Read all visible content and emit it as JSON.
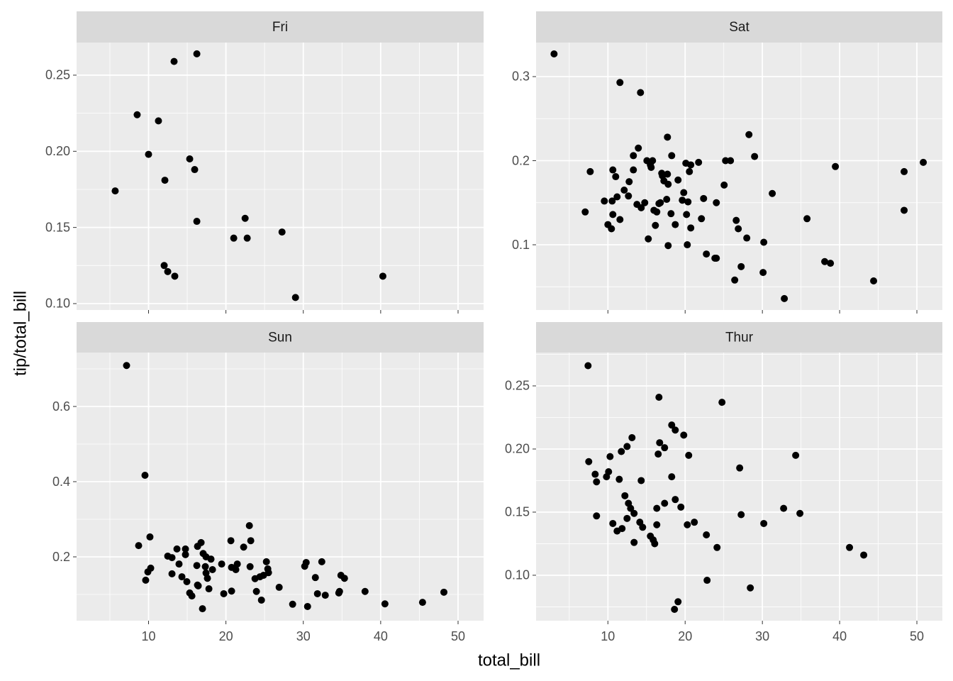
{
  "xlabel": "total_bill",
  "ylabel": "tip/total_bill",
  "chart_data": [
    {
      "type": "scatter",
      "title": "Fri",
      "color": "#000000",
      "grid": true,
      "xlim": [
        0.7,
        53.3
      ],
      "xticks": [
        10,
        20,
        30,
        40,
        50
      ],
      "ylim": [
        0.0958,
        0.2714
      ],
      "yticks": [
        {
          "value": 0.1,
          "label": "0.10"
        },
        0.15,
        {
          "value": 0.2,
          "label": "0.20"
        },
        0.25
      ],
      "x": [
        5.69,
        8.53,
        11.28,
        10.0,
        12.11,
        13.3,
        15.32,
        15.96,
        16.24,
        16.24,
        12.02,
        12.48,
        13.39,
        21.01,
        22.48,
        22.75,
        27.25,
        28.99,
        40.28
      ],
      "values": [
        0.174,
        0.224,
        0.22,
        0.198,
        0.181,
        0.259,
        0.195,
        0.188,
        0.264,
        0.154,
        0.125,
        0.121,
        0.118,
        0.143,
        0.156,
        0.143,
        0.147,
        0.104,
        0.118
      ]
    },
    {
      "type": "scatter",
      "title": "Sat",
      "color": "#000000",
      "grid": true,
      "xlim": [
        0.7,
        53.3
      ],
      "xticks": [
        10,
        20,
        30,
        40,
        50
      ],
      "ylim": [
        0.0224,
        0.3405
      ],
      "yticks": [
        0.1,
        0.2,
        0.3
      ],
      "x": [
        3.03,
        11.56,
        14.22,
        7.71,
        7.06,
        10.0,
        10.46,
        10.64,
        9.54,
        10.55,
        10.64,
        11.01,
        11.19,
        11.56,
        12.11,
        12.66,
        12.75,
        13.3,
        13.3,
        13.76,
        13.94,
        14.31,
        14.77,
        15.05,
        15.23,
        15.5,
        15.6,
        15.78,
        15.96,
        16.15,
        16.33,
        16.61,
        16.79,
        16.97,
        17.06,
        17.25,
        17.61,
        17.71,
        17.71,
        17.8,
        17.8,
        18.17,
        18.26,
        18.72,
        19.08,
        19.63,
        19.82,
        20.09,
        20.18,
        20.28,
        20.37,
        20.55,
        20.73,
        20.73,
        21.74,
        22.11,
        22.39,
        22.75,
        23.85,
        24.04,
        24.04,
        25.05,
        25.23,
        25.87,
        26.61,
        26.88,
        26.42,
        27.25,
        27.98,
        28.26,
        28.99,
        30.18,
        30.09,
        31.28,
        32.84,
        35.78,
        38.07,
        38.81,
        39.45,
        44.4,
        48.35,
        48.35,
        50.83
      ],
      "values": [
        0.327,
        0.293,
        0.281,
        0.187,
        0.139,
        0.124,
        0.119,
        0.136,
        0.152,
        0.152,
        0.189,
        0.181,
        0.157,
        0.13,
        0.165,
        0.158,
        0.175,
        0.189,
        0.206,
        0.148,
        0.215,
        0.144,
        0.15,
        0.2,
        0.107,
        0.195,
        0.192,
        0.2,
        0.141,
        0.123,
        0.139,
        0.149,
        0.15,
        0.185,
        0.182,
        0.176,
        0.154,
        0.228,
        0.184,
        0.099,
        0.172,
        0.137,
        0.206,
        0.124,
        0.177,
        0.153,
        0.162,
        0.197,
        0.136,
        0.1,
        0.151,
        0.187,
        0.12,
        0.195,
        0.198,
        0.131,
        0.155,
        0.089,
        0.084,
        0.084,
        0.15,
        0.171,
        0.2,
        0.2,
        0.129,
        0.119,
        0.058,
        0.074,
        0.108,
        0.231,
        0.205,
        0.103,
        0.067,
        0.161,
        0.036,
        0.131,
        0.08,
        0.078,
        0.193,
        0.057,
        0.187,
        0.141,
        0.198
      ]
    },
    {
      "type": "scatter",
      "title": "Sun",
      "color": "#000000",
      "grid": true,
      "xlim": [
        0.7,
        53.3
      ],
      "xticks": [
        10,
        20,
        30,
        40,
        50
      ],
      "ylim": [
        0.0302,
        0.7434
      ],
      "yticks": [
        0.2,
        0.4,
        0.6
      ],
      "x": [
        7.16,
        9.54,
        8.72,
        10.18,
        9.63,
        9.91,
        10.28,
        12.48,
        13.03,
        13.03,
        13.67,
        13.94,
        14.31,
        14.77,
        14.77,
        14.95,
        15.32,
        15.6,
        16.24,
        16.33,
        16.33,
        16.79,
        16.42,
        16.97,
        17.06,
        17.34,
        17.43,
        17.43,
        17.61,
        17.8,
        18.07,
        18.26,
        19.45,
        19.72,
        20.64,
        20.73,
        20.73,
        21.28,
        21.47,
        22.29,
        23.03,
        23.21,
        23.12,
        23.76,
        23.94,
        24.4,
        24.59,
        24.86,
        25.23,
        25.41,
        25.5,
        26.88,
        28.62,
        30.18,
        30.37,
        30.55,
        31.56,
        31.83,
        32.39,
        32.84,
        34.59,
        34.68,
        34.86,
        35.32,
        37.98,
        40.55,
        45.41,
        48.17
      ],
      "values": [
        0.709,
        0.417,
        0.23,
        0.253,
        0.138,
        0.16,
        0.17,
        0.202,
        0.198,
        0.155,
        0.221,
        0.181,
        0.147,
        0.206,
        0.221,
        0.134,
        0.104,
        0.096,
        0.177,
        0.228,
        0.125,
        0.238,
        0.123,
        0.062,
        0.209,
        0.174,
        0.157,
        0.2,
        0.143,
        0.115,
        0.194,
        0.166,
        0.181,
        0.102,
        0.243,
        0.172,
        0.109,
        0.166,
        0.181,
        0.226,
        0.283,
        0.243,
        0.174,
        0.142,
        0.108,
        0.147,
        0.085,
        0.151,
        0.187,
        0.168,
        0.158,
        0.119,
        0.074,
        0.175,
        0.185,
        0.068,
        0.145,
        0.102,
        0.187,
        0.098,
        0.104,
        0.108,
        0.151,
        0.143,
        0.108,
        0.075,
        0.079,
        0.106
      ]
    },
    {
      "type": "scatter",
      "title": "Thur",
      "color": "#000000",
      "grid": true,
      "xlim": [
        0.7,
        53.3
      ],
      "xticks": [
        10,
        20,
        30,
        40,
        50
      ],
      "ylim": [
        0.064,
        0.2764
      ],
      "yticks": [
        {
          "value": 0.1,
          "label": "0.10"
        },
        0.15,
        {
          "value": 0.2,
          "label": "0.20"
        },
        0.25
      ],
      "x": [
        7.43,
        7.52,
        8.35,
        8.53,
        8.53,
        9.82,
        10.09,
        10.28,
        10.64,
        11.19,
        11.47,
        11.74,
        11.83,
        12.2,
        12.48,
        12.48,
        12.66,
        12.94,
        13.12,
        13.39,
        13.39,
        14.13,
        14.31,
        14.5,
        15.5,
        15.87,
        16.06,
        16.33,
        16.33,
        16.51,
        16.61,
        16.7,
        17.34,
        17.34,
        18.26,
        18.26,
        18.72,
        18.72,
        18.62,
        19.08,
        19.45,
        19.82,
        20.28,
        20.46,
        21.19,
        22.75,
        22.84,
        24.13,
        24.77,
        27.06,
        27.25,
        28.44,
        30.18,
        32.75,
        34.31,
        34.86,
        41.28,
        43.12
      ],
      "values": [
        0.266,
        0.19,
        0.18,
        0.174,
        0.147,
        0.178,
        0.182,
        0.194,
        0.141,
        0.135,
        0.176,
        0.198,
        0.137,
        0.163,
        0.202,
        0.145,
        0.157,
        0.153,
        0.209,
        0.149,
        0.126,
        0.142,
        0.175,
        0.138,
        0.131,
        0.128,
        0.125,
        0.14,
        0.153,
        0.196,
        0.241,
        0.205,
        0.201,
        0.157,
        0.178,
        0.219,
        0.215,
        0.16,
        0.073,
        0.079,
        0.154,
        0.211,
        0.14,
        0.195,
        0.142,
        0.132,
        0.096,
        0.122,
        0.237,
        0.185,
        0.148,
        0.09,
        0.141,
        0.153,
        0.195,
        0.149,
        0.122,
        0.116
      ]
    }
  ]
}
